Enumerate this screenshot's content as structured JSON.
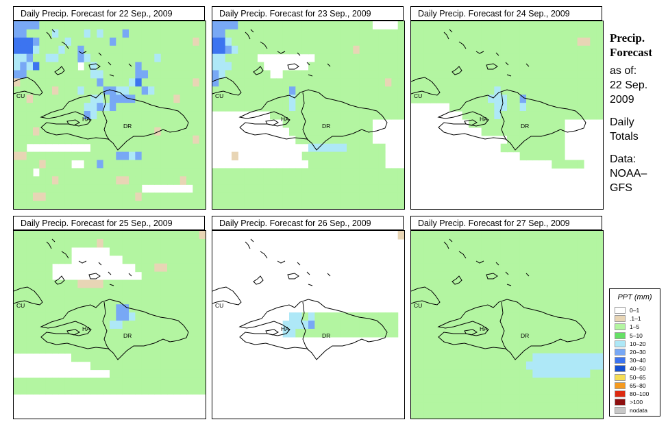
{
  "panels": [
    {
      "title": "Daily Precip. Forecast for  22 Sep., 2009",
      "grid": [
        "BBBBGGGGGGGGGGGGGGGGGGGGGGGGGG",
        "BBGGGGLGGGGLGLGGGBGGGGGGGGGGGG",
        "MMMBGGGGLGGGGGGBGGGGGGGGGGGGTG",
        "MMMLGGGLGGBGGGGGGGGGGGGGGGGGGG",
        "LLBGGLLGGGBLGGGGGGGGGGLGGGGGGG",
        "LBLMGGGGGGWGLGGGGGGBGGGGGGGGGG",
        "BBGGGGGGGGGGLLGGGGGBBGGGGGGGGG",
        "TGGGGGGGGGGGGBGGGGLMGGGGGGGGTG",
        "GGGGGGTGGGLGGGBBLLGGBLGGGGGGGG",
        "GGTGGGGGGGGGLLGBBBBGGGGGGTGGGG",
        "GGGGGGGGGGGLLBLBGGGGGGGGGGGGGG",
        "GGGGGGGGGGGBLGGGGGGGGGGGGGGGGG",
        "GGGGGGGGGGGGGGGGGGGGGGGGGGGGGG",
        "GGGTGGGGGGGGGGGGGGGGGGTGGGGGGG",
        "GGGGGGGGGGGGGGGGGGGGGGGGGGGGTG",
        "GGWWWWWWWWWWGGGGGGGGGGGGGGGGGG",
        "TTGGGGGGGGGGGGGGBBLBGGGGGGGGGG",
        "GGGGTGGGGWWGGBGGGGGGGGGGGGGGGG",
        "GGGWGGGGGGGGGGGGGGGGGGGGGGGGGG",
        "GGGGGGTGGGGGGGGGTTGGGGGGGGTGGG",
        "GGGGGGGGGGGGGGGGGGGGWWWWWWWWGG",
        "GGGTTGGGGGGGGGGGGGGTGGGGGGGGGG",
        "GGGGGGGGGGGGGGGGGGGGGGGGGGGGGG"
      ]
    },
    {
      "title": "Daily Precip. Forecast for  23 Sep., 2009",
      "grid": [
        "BBBBGGGGGGGGGGGGGGGGGGGGGWWWWG",
        "BBGGGGGGGGGGGGGGGGGGGGGGGGGGGG",
        "MMLGGGGGGGGGGGGGGGGGGGGGGGGGGG",
        "MMBLGGGGGGGGGGGGGGGGGGTGGGGGGG",
        "LLGGGGGWWWWWWWWWGGGGGGGGGGGGGG",
        "LLLGGGGGWWWWWWWGGGGGGGGGGGGGGG",
        "BLGGGGGGGWWGGGGGGGGGGGGGGGGGGG",
        "BGGGGGGGGGGGGGGGGGGGGGGGGGGTGG",
        "GGGGGGGGGGGGBGGGGGGGGGGGGGGGGG",
        "GGGGGGGGGGGGLGGGGGGGGGGGGGGGGG",
        "GGGGGGGGGGGGLGGGGGGGGGGGGGGGGG",
        "WWWWWWWWWGGGGGGGGGGGGGGGGGGGGG",
        "WWWWWWWWWWWGGGGGGGGGGGGGGWWWWW",
        "WWWWWWWWWWWWGGGGGGGGGGGGGWWWWW",
        "WWWWWWWWWWWWWGGGGGGGGGGGGWWWWW",
        "WWWWWWWWWWWWWWWLLLLLLGGGGGGWWW",
        "WWWTWWWWWWWWWWGGGGGGGGGGGGGWWW",
        "WWWWWWWWWWWWWWWGGGGGGGGGGGGWWW",
        "GGGGGGGGGGGGGGGGGGGGGGGGGGGGGG",
        "GGGGGGGGGGGGGGGGGGGGGGGGGGGGGG",
        "GGGGGGGGGGGGGGGGGGGGGGGGGGGGGG",
        "GGGGGGGGGGGGGGGGGGGGGGGGGGGGGG",
        "GGGGGGGGGGGGGGGGGGGGGGGGGGGGGG"
      ]
    },
    {
      "title": "Daily Precip. Forecast for  24 Sep., 2009",
      "grid": [
        "GGGGGGGGGGGGGGGGGGGGGGGGGGGGGG",
        "GGGGGGGGGGGGGGGGGGGGGGGGGGGGGG",
        "GGGGGGGGGGGGGGGGGGGGGGGGGGTTGG",
        "GGGGGGGGGGGGGGGGGGGGGGGGGGGGGG",
        "GGGGGGGGGGGGGGGGGGGGGGGGGGGGGG",
        "GGGGGGGGGGGGGGGGGGGGGGGGGGGGGG",
        "GGGGGGGGGGGGGGGGGGGGGGGGGGGGGG",
        "GGGGGGGGGGGGGGGGGGGGGGGGGGGGGG",
        "GGGGGGGGGGGGGLGGGGGGGGGGGGGGGG",
        "GGGGGGGGGGGGLLLGGBGGGGGGGGGGGG",
        "WWWWWWGGGGGGGLLGGLGGGGGGGGGGGG",
        "WWWWWWWWGGGGGLGGGGGGGGGGGGGGGG",
        "WWWWWWWWWGGGGGGGGGGGGGGGWWWWWW",
        "WWWWWWWWWWWGGGGGGGGGGGGGWWWWWW",
        "WWWWWWWWWWWWWWWGGGGGGGGGWWWWWW",
        "WWWWWWWWWWWWWWGGGGGGGGGGWWWWWW",
        "WWWWWWWWWWWWWWWWWGGGGGGGWWWWWW",
        "WWWWWWWWWWWWWWWWWWWWWWGGGGGWWW",
        "WWWWWWWWWWWWWWWWWWWWWWWWWWWWWW",
        "WWWWWWWWWWWWWWWWWWWWWWWWWWWWWW",
        "WWWWWWWWWWWWWWWWWWWWWWWWWWWWWW",
        "WWWWWWWWWWWWWWWWWWWWWWWWWWWWWW",
        "WWWWWWWWWWWWWWWWWWWWWWWWWWWWWW"
      ]
    },
    {
      "title": "Daily Precip. Forecast for  25 Sep., 2009",
      "grid": [
        "GGGGGGGGGGGGGGGGGGGGGGGGGGGGGT",
        "GGGGGGGGGGGGGTGGGGGGGGGGGGGGGG",
        "GGGGGGGGGWWWWWWGGGGGGGGGGGGGGG",
        "GGGGGGGGGWWWWWWWWGGGGGGGGGGGGG",
        "GGGGGGWWWWWWWWWWWWWGGGTTGGGGGG",
        "GGGGGGWWWWWWWWWWWWWWGGGGGGGGGG",
        "GGGGGGGGGGTTTTGGGGGGGGGGGGGGGG",
        "GGGGGGGGGGGGGGGGGGGGGGGGGGGGGG",
        "GGGGGGGGGGGGGGGGGGGGGGGGGGGGGG",
        "GGGGGGGGGGGGGGGGBBGGGGGGGGGGGG",
        "GGGGGGGGGGGGGGGGBBLGGGGGGGGGGG",
        "GGGGGGGGGGGGGGGLLGGGGGGGGGGGGG",
        "GGGGGGGGGGGGGGGGGGGGGGGGGGGGGG",
        "GGGGGGGGGGGGGGGGGGGGGGGGGGGGGG",
        "GGGGGGGGGGGGGGGGGGGGGGGGGGGGGG",
        "WWWWWWWWWGGGGGGGGGGGGGGGGGGGGG",
        "WWWWWWWWWWWWGGGGGGGGGGGGGGGGGG",
        "WWWWWWWWWWWWWWWGGGGGGGGGGGGGGG",
        "GGGGGGGGGGGGGGGGGGGGGGGGGGGGGG",
        "GGGGGGGGGGGGGGGGGGGGGGGGGGGGGG",
        "WWWWWWWWWWWWWWWWWWWWWWWWWWWWWW",
        "WWWWWWWWWWWWWWWWWWWWWWWWWWWWWW",
        "WWWWWWWWWWWWWWWWWWWWWWWWWWWWWW"
      ]
    },
    {
      "title": "Daily Precip. Forecast for  26 Sep., 2009",
      "grid": [
        "WWWWWWWWWWWWWWWWWWWWWWWWWWWWWT",
        "WWWWWWWWWWWWWWWWWWWWWWWWWWWWWW",
        "WWWWWWWWWWWWWWWWWWWWWWWWWWWWWW",
        "WWWWWWWWWWWWWWWWWWWWWWWWWWWWWW",
        "WWWWWWWWWWWWWWWWWWWWWWWWWWWWWW",
        "WWWWWWWWWWWWWWWWWWWWWWWWWWWWWW",
        "WWWWWWWWWWWWWWWWWWWWWWWWWWWWWW",
        "WWWWWWWWWWWWWWWWWWWWWWWWWWWWWW",
        "WWWWWWWWWWWWWWWWWWWWWWWWWWWWWW",
        "WWWWWWWWWWWWWWWWWWWWWWWWWWWWWW",
        "WWWWWWWWWWWWLLGLGGGGGGGGGGGGGW",
        "WWWWWWWWWWWLLLLBGGGGGGGGGGGGGW",
        "WWWWWWWWWWWLLGGGGGGGGGGGGGGGGW",
        "WWWWWWWWWWWWWWWWWWWWWWWWWWWWWW",
        "WWWWWWWWWWWWWWWWWWWWWWWWWWWWWW",
        "WWWWWWWWWWWWWWWWWWWWWWWWWWWWWW",
        "WWWWWWWWWWWWWWWWWWWWWWWWWWWWWW",
        "WWWWWWWWWWWWWWWWWWWWWWWWWWWWWW",
        "WWWWWWWWWWWWWWWWWWWWWWWWWWWWWW",
        "WWWWWWWWWWWWWWWWWWWWWWWWWWWWWW",
        "WWWWWWWWWWWWWWWWWWWWWWWWWWWWWW",
        "WWWWWWWWWWWWWWWWWWWWWWWWWWWWWW",
        "WWWWWWWWWWWWWWWWWWWWWWWWWWWWWW"
      ]
    },
    {
      "title": "Daily Precip. Forecast for  27 Sep., 2009",
      "grid": [
        "GGGGGGGGGGGGGGGGGGGGGGGGGGGGGG",
        "GGGGGGGGGGGGGGGGGGGGGGGGGGGGGG",
        "GGGGGGGGGGGGGGGGGGGGGGGGGGGGGG",
        "GGGGGGGGGGGGGGGGGGGGGGGGGGGGGG",
        "GGGGGGGGGGGGGGGGGGGGGGGGGGGGGG",
        "GGGGGGGGGGGGGGGGGGGGGGGGGGGGGG",
        "GGGGGGGGGGGGGGGGGGGGGGGGGGGGGG",
        "GGGGGGGGGGGGGGGGGGGGGGGGGGGGGG",
        "GGGGGGGGGGGGGGGGGGGGGGGGGGGGGG",
        "GGGGGGGGGGGGGGGGGGGGGGGGGGGGGG",
        "GGGGGGGGGGGGGGGGGGGGGGGGGGGGGG",
        "GGGGGGGGGGGGGGGGGGGGGGGGGGGGGG",
        "GGGGGGGGGGGGGGGGGGGGGGGGGGGGGG",
        "GGGGGGGGGGGGGGGGGGGGGGGGGGGGGG",
        "GGGGGGGGGGGGGGGGGGGGGGGGGGGGGG",
        "GGGGGGGGGGGGGGGGGGGLLLLLLLLLLL",
        "GGGGGGGGGGGGGGGGGGLLLLLLLLLLLL",
        "GGGGGGGGGGGGGGGGGGGLLLLLLLLLGG",
        "GGGGGGGGGGGGGGGGGGGGGGGGGGGGGG",
        "GGGGGGGGGGGGGGGGGGGGGGGGGGGGGG",
        "GGGGGGGGGGGGGGGGGGGGGGGGGGGGGG",
        "GGGGGGGGGGGGGGGGGGGGGGGGGGGGGG",
        "GGGGGGGGGGGGGGGGGGGGGGGGGGGGGG"
      ]
    }
  ],
  "map_labels": [
    "CU",
    "HA",
    "DR"
  ],
  "side_text": {
    "heading": [
      "Precip.",
      "Forecast"
    ],
    "lines": [
      "as of:",
      "22 Sep.",
      "2009",
      "",
      "Daily",
      "Totals",
      "",
      "Data:",
      "NOAA–",
      "GFS"
    ]
  },
  "legend": {
    "title": "PPT (mm)",
    "items": [
      {
        "label": "0–1",
        "color": "#ffffff"
      },
      {
        "label": ".1–1",
        "color": "#e8d5b5"
      },
      {
        "label": "1–5",
        "color": "#b3f5a1"
      },
      {
        "label": "5–10",
        "color": "#66e066"
      },
      {
        "label": "10–20",
        "color": "#aee8f7"
      },
      {
        "label": "20–30",
        "color": "#78a8f5"
      },
      {
        "label": "30–40",
        "color": "#3c74f0"
      },
      {
        "label": "40–50",
        "color": "#1450d2"
      },
      {
        "label": "50–65",
        "color": "#f5dd55"
      },
      {
        "label": "65–80",
        "color": "#f59a20"
      },
      {
        "label": "80–100",
        "color": "#dd2a10"
      },
      {
        "label": ">100",
        "color": "#8e1010"
      },
      {
        "label": "nodata",
        "color": "#c8c8c8"
      }
    ]
  },
  "colors": {
    "W": "#ffffff",
    "T": "#e8d5b5",
    "G": "#b3f5a1",
    "L": "#aee8f7",
    "B": "#78a8f5",
    "M": "#3c74f0",
    "D": "#1450d2"
  }
}
